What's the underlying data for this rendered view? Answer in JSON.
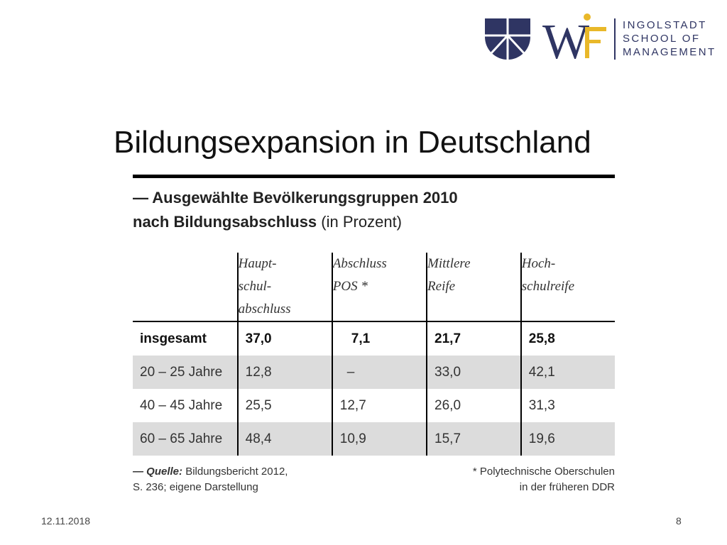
{
  "logo": {
    "mark": "WF",
    "lines": [
      "INGOLSTADT",
      "SCHOOL OF",
      "MANAGEMENT"
    ],
    "colors": {
      "navy": "#2f3563",
      "gold": "#e9b829"
    }
  },
  "title": "Bildungsexpansion in Deutschland",
  "caption": {
    "line1": "— Ausgewählte Bevölkerungsgruppen 2010",
    "line2_bold": "nach Bildungsabschluss",
    "line2_normal": "(in Prozent)"
  },
  "table": {
    "headers": [
      [
        "Haupt-",
        "schul-",
        "abschluss"
      ],
      [
        "Abschluss",
        "POS *"
      ],
      [
        "Mittlere",
        "Reife"
      ],
      [
        "Hoch-",
        "schulreife"
      ]
    ],
    "rows": [
      {
        "label": "insgesamt",
        "values": [
          "37,0",
          "7,1",
          "21,7",
          "25,8"
        ]
      },
      {
        "label": "20 – 25 Jahre",
        "values": [
          "12,8",
          "–",
          "33,0",
          "42,1"
        ]
      },
      {
        "label": "40 – 45 Jahre",
        "values": [
          "25,5",
          "12,7",
          "26,0",
          "31,3"
        ]
      },
      {
        "label": "60 – 65 Jahre",
        "values": [
          "48,4",
          "10,9",
          "15,7",
          "19,6"
        ]
      }
    ]
  },
  "footnotes": {
    "source_prefix": "— Quelle:",
    "source_text": "Bildungsbericht 2012,",
    "source_line2": "S. 236; eigene Darstellung",
    "note_line1": "* Polytechnische Oberschulen",
    "note_line2": "in der früheren DDR"
  },
  "footer": {
    "date": "12.11.2018",
    "page": "8"
  }
}
